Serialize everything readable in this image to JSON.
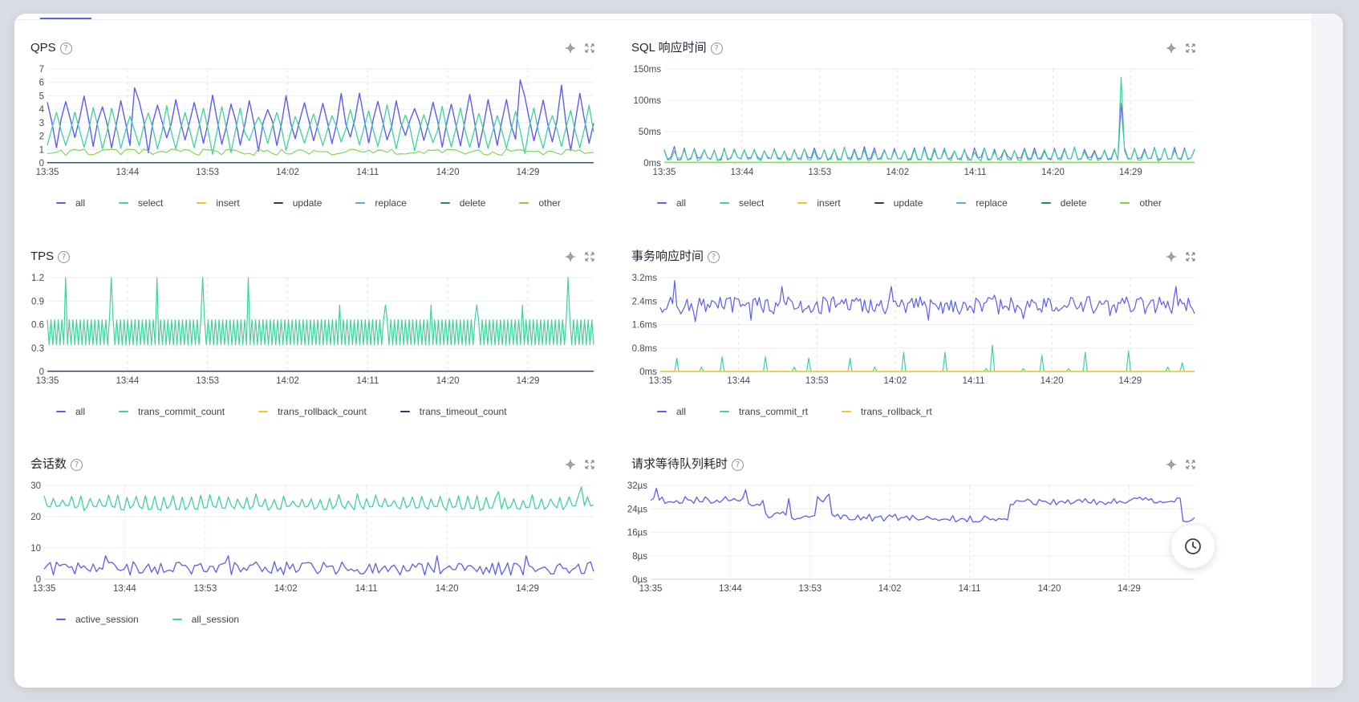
{
  "colors": {
    "all": "#5b5ff0",
    "select": "#3ed39b",
    "insert": "#f7c230",
    "update": "#2f3a5c",
    "replace": "#5aa5e8",
    "delete": "#1f8a6a",
    "other": "#79d44a"
  },
  "icons": {
    "help": "question-circle-icon",
    "locate": "crosshair-icon",
    "expand": "fullscreen-icon",
    "history": "clock-icon"
  },
  "panels": [
    {
      "title": "QPS",
      "help": "?",
      "legend": [
        {
          "name": "all",
          "color": "#5b5ff0"
        },
        {
          "name": "select",
          "color": "#3ed39b"
        },
        {
          "name": "insert",
          "color": "#f7c230"
        },
        {
          "name": "update",
          "color": "#2f3a5c"
        },
        {
          "name": "replace",
          "color": "#5aa5e8"
        },
        {
          "name": "delete",
          "color": "#1f8a6a"
        },
        {
          "name": "other",
          "color": "#79d44a"
        }
      ],
      "chart_data": {
        "type": "line",
        "x_ticks": [
          "13:35",
          "13:44",
          "13:53",
          "14:02",
          "14:11",
          "14:20",
          "14:29"
        ],
        "y_ticks": [
          "0",
          "1",
          "2",
          "3",
          "4",
          "5",
          "6",
          "7"
        ],
        "ylim": [
          0,
          7
        ],
        "grid": true,
        "legend_position": "bottom",
        "series": [
          {
            "name": "all",
            "pattern": "oscillating",
            "base": 3.0,
            "amplitude": 1.9,
            "period": 4,
            "noise": 0.6,
            "peaks": [
              [
                103,
                6.2
              ],
              [
                112,
                5.8
              ],
              [
                19,
                5.6
              ]
            ],
            "points": 120,
            "color": "#5b5ff0",
            "width": 1.4
          },
          {
            "name": "select",
            "pattern": "oscillating",
            "base": 2.5,
            "amplitude": 1.6,
            "period": 4,
            "noise": 0.5,
            "phase": 2,
            "points": 120,
            "color": "#3ed39b",
            "width": 1.3
          },
          {
            "name": "other",
            "pattern": "noisy",
            "base": 0.8,
            "amplitude": 0.25,
            "points": 120,
            "color": "#79d44a",
            "width": 1.1
          },
          {
            "name": "delete",
            "pattern": "flat",
            "base": 0.02,
            "points": 120,
            "color": "#1f8a6a",
            "width": 1.1
          },
          {
            "name": "update",
            "pattern": "flat",
            "base": 0.01,
            "points": 120,
            "color": "#2f3a5c",
            "width": 1.1
          }
        ]
      }
    },
    {
      "title": "SQL 响应时间",
      "help": "?",
      "legend": [
        {
          "name": "all",
          "color": "#5b5ff0"
        },
        {
          "name": "select",
          "color": "#3ed39b"
        },
        {
          "name": "insert",
          "color": "#f7c230"
        },
        {
          "name": "update",
          "color": "#2f3a5c"
        },
        {
          "name": "replace",
          "color": "#5aa5e8"
        },
        {
          "name": "delete",
          "color": "#1f8a6a"
        },
        {
          "name": "other",
          "color": "#79d44a"
        }
      ],
      "chart_data": {
        "type": "line",
        "x_ticks": [
          "13:35",
          "13:44",
          "13:53",
          "14:02",
          "14:11",
          "14:20",
          "14:29"
        ],
        "y_ticks": [
          "0ms",
          "50ms",
          "100ms",
          "150ms"
        ],
        "ylim": [
          0,
          150
        ],
        "grid": true,
        "legend_position": "bottom",
        "series": [
          {
            "name": "all",
            "pattern": "oscillating",
            "base": 12,
            "amplitude": 12,
            "period": 3,
            "noise": 4,
            "peaks": [
              [
                137,
                95
              ]
            ],
            "points": 160,
            "color": "#5b5ff0",
            "width": 1.1
          },
          {
            "name": "select",
            "pattern": "oscillating",
            "base": 11,
            "amplitude": 12,
            "period": 3,
            "noise": 4,
            "peaks": [
              [
                137,
                137
              ]
            ],
            "points": 160,
            "color": "#3ed39b",
            "width": 1.2
          },
          {
            "name": "other",
            "pattern": "flat",
            "base": 1,
            "points": 160,
            "color": "#79d44a",
            "width": 1.1
          }
        ]
      }
    },
    {
      "title": "TPS",
      "help": "?",
      "legend": [
        {
          "name": "all",
          "color": "#5b5ff0"
        },
        {
          "name": "trans_commit_count",
          "color": "#3ed39b"
        },
        {
          "name": "trans_rollback_count",
          "color": "#f7c230"
        },
        {
          "name": "trans_timeout_count",
          "color": "#2f3a5c"
        }
      ],
      "chart_data": {
        "type": "line",
        "x_ticks": [
          "13:35",
          "13:44",
          "13:53",
          "14:02",
          "14:11",
          "14:20",
          "14:29"
        ],
        "y_ticks": [
          "0",
          "0.3",
          "0.6",
          "0.9",
          "1.2"
        ],
        "ylim": [
          0,
          1.2
        ],
        "grid": true,
        "legend_position": "bottom",
        "series": [
          {
            "name": "trans_commit_count",
            "pattern": "zigzag",
            "base": 0.5,
            "amplitude": 0.16,
            "period": 2,
            "peaks": [
              [
                10,
                1.2
              ],
              [
                35,
                1.2
              ],
              [
                60,
                1.2
              ],
              [
                85,
                1.2
              ],
              [
                110,
                1.2
              ],
              [
                160,
                0.85
              ],
              [
                185,
                0.85
              ],
              [
                210,
                0.85
              ],
              [
                235,
                0.85
              ],
              [
                260,
                0.85
              ],
              [
                285,
                1.2
              ]
            ],
            "points": 300,
            "color": "#3ed39b",
            "width": 1.2
          },
          {
            "name": "trans_timeout_count",
            "pattern": "flat",
            "base": 0.003,
            "points": 300,
            "color": "#2f3a5c",
            "width": 1.3
          }
        ]
      }
    },
    {
      "title": "事务响应时间",
      "help": "?",
      "legend": [
        {
          "name": "all",
          "color": "#5b5ff0"
        },
        {
          "name": "trans_commit_rt",
          "color": "#3ed39b"
        },
        {
          "name": "trans_rollback_rt",
          "color": "#f7c230"
        }
      ],
      "chart_data": {
        "type": "line",
        "x_ticks": [
          "13:35",
          "13:44",
          "13:53",
          "14:02",
          "14:11",
          "14:20",
          "14:29"
        ],
        "y_ticks": [
          "0ms",
          "0.8ms",
          "1.6ms",
          "2.4ms",
          "3.2ms"
        ],
        "ylim": [
          0,
          3.2
        ],
        "grid": true,
        "legend_position": "bottom",
        "series": [
          {
            "name": "all",
            "pattern": "noisy",
            "base": 2.25,
            "amplitude": 0.3,
            "peaks": [
              [
                7,
                3.1
              ],
              [
                59,
                2.9
              ],
              [
                112,
                2.9
              ],
              [
                162,
                2.6
              ],
              [
                250,
                2.9
              ]
            ],
            "dips": [
              [
                17,
                1.7
              ],
              [
                44,
                1.75
              ],
              [
                130,
                1.75
              ],
              [
                176,
                1.8
              ],
              [
                218,
                1.9
              ]
            ],
            "points": 260,
            "color": "#5b5ff0",
            "width": 1.2
          },
          {
            "name": "trans_commit_rt",
            "pattern": "spikes",
            "base": 0.0,
            "peaks": [
              [
                8,
                0.45
              ],
              [
                20,
                0.15
              ],
              [
                30,
                0.5
              ],
              [
                51,
                0.5
              ],
              [
                65,
                0.15
              ],
              [
                72,
                0.45
              ],
              [
                92,
                0.45
              ],
              [
                104,
                0.15
              ],
              [
                118,
                0.65
              ],
              [
                138,
                0.65
              ],
              [
                158,
                0.1
              ],
              [
                161,
                0.9
              ],
              [
                176,
                0.1
              ],
              [
                185,
                0.55
              ],
              [
                198,
                0.1
              ],
              [
                206,
                0.65
              ],
              [
                227,
                0.7
              ],
              [
                246,
                0.15
              ],
              [
                253,
                0.3
              ]
            ],
            "points": 260,
            "color": "#3ed39b",
            "width": 1.2
          },
          {
            "name": "trans_rollback_rt",
            "pattern": "flat",
            "base": 0.0,
            "points": 260,
            "color": "#f7c230",
            "width": 1.4
          }
        ]
      }
    },
    {
      "title": "会话数",
      "help": "?",
      "legend": [
        {
          "name": "active_session",
          "color": "#5b5ff0"
        },
        {
          "name": "all_session",
          "color": "#3ed39b"
        }
      ],
      "chart_data": {
        "type": "line",
        "x_ticks": [
          "13:35",
          "13:44",
          "13:53",
          "14:02",
          "14:11",
          "14:20",
          "14:29"
        ],
        "y_ticks": [
          "0",
          "10",
          "20",
          "30"
        ],
        "ylim": [
          0,
          30
        ],
        "grid": true,
        "legend_position": "bottom",
        "series": [
          {
            "name": "all_session",
            "pattern": "oscillating",
            "base": 24,
            "amplitude": 2.5,
            "period": 3,
            "noise": 1.5,
            "peaks": [
              [
                175,
                29.5
              ],
              [
                148,
                28
              ]
            ],
            "points": 180,
            "color": "#3ed39b",
            "width": 1.3
          },
          {
            "name": "active_session",
            "pattern": "noisy",
            "base": 3.5,
            "amplitude": 2.2,
            "peaks": [
              [
                60,
                7.5
              ],
              [
                20,
                7.5
              ],
              [
                128,
                7.5
              ],
              [
                157,
                7.5
              ]
            ],
            "points": 180,
            "color": "#5b5ff0",
            "width": 1.3
          }
        ]
      }
    },
    {
      "title": "请求等待队列耗时",
      "help": "?",
      "legend": [],
      "chart_data": {
        "type": "line",
        "x_ticks": [
          "13:35",
          "13:44",
          "13:53",
          "14:02",
          "14:11",
          "14:20",
          "14:29"
        ],
        "y_ticks": [
          "0µs",
          "8µs",
          "16µs",
          "24µs",
          "32µs"
        ],
        "ylim": [
          0,
          32
        ],
        "grid": true,
        "legend_position": "none",
        "series": [
          {
            "name": "",
            "pattern": "regime",
            "levels": [
              [
                0,
                27
              ],
              [
                35,
                26
              ],
              [
                40,
                22
              ],
              [
                50,
                20.5
              ],
              [
                58,
                27
              ],
              [
                63,
                21
              ],
              [
                95,
                20.5
              ],
              [
                125,
                26.5
              ],
              [
                160,
                27
              ],
              [
                185,
                20.5
              ]
            ],
            "noise": 1.2,
            "peaks": [
              [
                2,
                31
              ],
              [
                33,
                30.5
              ],
              [
                48,
                27.5
              ],
              [
                62,
                29
              ]
            ],
            "points": 190,
            "color": "#5b5ff0",
            "width": 1.3
          }
        ]
      }
    }
  ]
}
